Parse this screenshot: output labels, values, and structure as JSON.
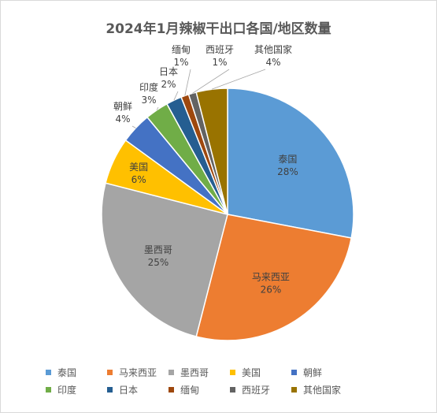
{
  "chart_data": {
    "type": "pie",
    "title": "2024年1月辣椒干出口各国/地区数量",
    "categories": [
      "泰国",
      "马来西亚",
      "墨西哥",
      "美国",
      "朝鲜",
      "印度",
      "日本",
      "缅甸",
      "西班牙",
      "其他国家"
    ],
    "values": [
      28,
      26,
      25,
      6,
      4,
      3,
      2,
      1,
      1,
      4
    ],
    "labels": [
      "28%",
      "26%",
      "25%",
      "6%",
      "4%",
      "3%",
      "2%",
      "1%",
      "1%",
      "4%"
    ],
    "colors": [
      "#5b9bd5",
      "#ed7d31",
      "#a5a5a5",
      "#ffc000",
      "#4472c4",
      "#70ad47",
      "#255e91",
      "#9e480e",
      "#636363",
      "#997300"
    ],
    "legend_position": "bottom"
  }
}
